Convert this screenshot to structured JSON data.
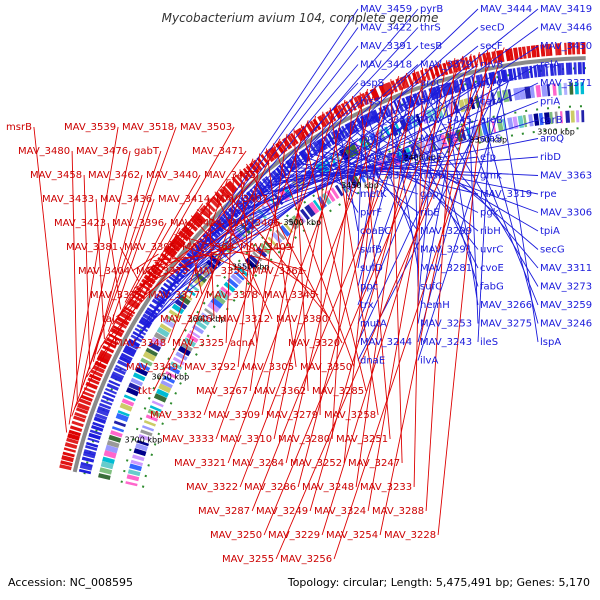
{
  "title": "Mycobacterium avium 104, complete genome",
  "footer": {
    "accession": "Accession: NC_008595",
    "stats": "Topology: circular; Length: 5,475,491 bp; Genes: 5,170"
  },
  "colors": {
    "forward_strand": "#1a1adb",
    "reverse_strand": "#dd0000",
    "backbone": "#8a8a8a",
    "ticks": "#2e8b2e"
  },
  "kbp_marks": [
    "3700 kbp",
    "3650 kbp",
    "3600 kbp",
    "3550 kbp",
    "3500 kbp",
    "3450 kbp",
    "3400 kbp",
    "3350 kbp",
    "3300 kbp"
  ],
  "forward_labels": [
    "MAV_3459",
    "pyrB",
    "MAV_3444",
    "MAV_3419",
    "MAV_3422",
    "thrS",
    "secD",
    "MAV_3446",
    "MAV_3391",
    "tesB",
    "secF",
    "MAV_3450",
    "MAV_3418",
    "MAV_3379",
    "ruvB",
    "relA",
    "aspS",
    "aroC",
    "pyrC",
    "MAV_3371",
    "hisS",
    "aroK",
    "carA",
    "priA",
    "MAV_3358",
    "MAV_3445",
    "aroB",
    "carB",
    "fmt",
    "MAV_3352",
    "alaS",
    "aroQ",
    "MAV_3342",
    "aroE",
    "efp",
    "ribD",
    "MAV_3334",
    "nusB",
    "gmk",
    "MAV_3363",
    "metK",
    "gap",
    "MAV_3319",
    "rpe",
    "pvrF",
    "ribE",
    "pgk",
    "MAV_3306",
    "coaBC",
    "MAV_3299",
    "ribH",
    "tpiA",
    "sufB",
    "MAV_3291",
    "uvrC",
    "secG",
    "sufD",
    "MAV_3281",
    "cvoE",
    "MAV_3311",
    "ppc",
    "sufC",
    "fabG",
    "MAV_3273",
    "trx",
    "hemH",
    "MAV_3266",
    "MAV_3259",
    "mutA",
    "MAV_3253",
    "MAV_3275",
    "MAV_3246",
    "MAV_3244",
    "MAV_3243",
    "ileS",
    "lspA",
    "dnaE",
    "ilvA"
  ],
  "reverse_labels": [
    "msrB",
    "MAV_3539",
    "MAV_3518",
    "MAV_3503",
    "MAV_3480",
    "MAV_3476",
    "gabT",
    "MAV_3471",
    "MAV_3458",
    "MAV_3462",
    "MAV_3440",
    "MAV_3455",
    "MAV_3433",
    "MAV_3436",
    "MAV_3414",
    "MAV_3407",
    "MAV_3423",
    "MAV_3396",
    "MAV_3424",
    "MAV_3406",
    "MAV_3381",
    "MAV_3395",
    "MAV_3369",
    "MAV_3403",
    "MAV_3404",
    "MAV_3373",
    "MAV_3351",
    "MAV_3361",
    "MAV_3337",
    "MAV_3377",
    "MAV_3378",
    "MAV_3345",
    "tal",
    "MAV_3346",
    "MAV_3312",
    "MAV_3380",
    "MAV_3348",
    "MAV_3325",
    "acnA",
    "MAV_3320",
    "MAV_3349",
    "MAV_3292",
    "MAV_3305",
    "MAV_3350",
    "tkt",
    "MAV_3267",
    "MAV_3362",
    "MAV_3285",
    "MAV_3332",
    "MAV_3309",
    "MAV_3279",
    "MAV_3258",
    "MAV_3333",
    "MAV_3310",
    "MAV_3280",
    "MAV_3251",
    "MAV_3321",
    "MAV_3284",
    "MAV_3252",
    "MAV_3247",
    "MAV_3322",
    "MAV_3286",
    "MAV_3248",
    "MAV_3233",
    "MAV_3287",
    "MAV_3249",
    "MAV_3324",
    "MAV_3288",
    "MAV_3250",
    "MAV_3229",
    "MAV_3254",
    "MAV_3228",
    "MAV_3255",
    "MAV_3256"
  ]
}
